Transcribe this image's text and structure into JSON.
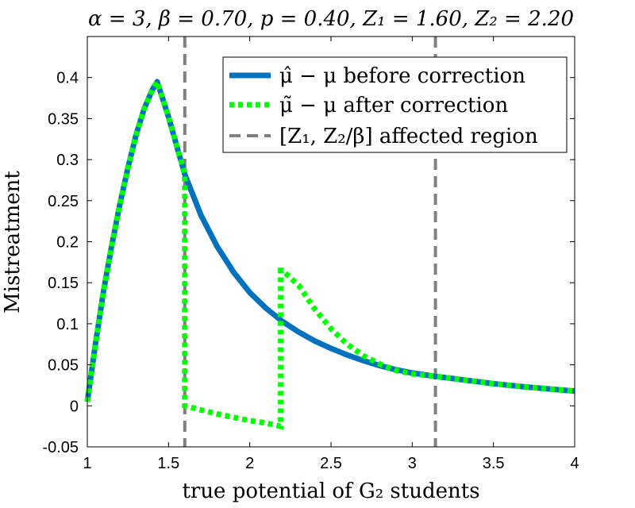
{
  "chart_data": {
    "type": "line",
    "title": "α = 3, β = 0.70, p = 0.40, Z₁ = 1.60, Z₂ = 2.20",
    "xlabel": "true potential of G₂ students",
    "ylabel": "Mistreatment",
    "xlim": [
      1,
      4
    ],
    "ylim": [
      -0.05,
      0.45
    ],
    "x_ticks": [
      1,
      1.5,
      2,
      2.5,
      3,
      3.5,
      4
    ],
    "x_tick_labels": [
      "1",
      "1.5",
      "2",
      "2.5",
      "3",
      "3.5",
      "4"
    ],
    "y_ticks": [
      -0.05,
      0,
      0.05,
      0.1,
      0.15,
      0.2,
      0.25,
      0.3,
      0.35,
      0.4
    ],
    "y_tick_labels": [
      "-0.05",
      "0",
      "0.05",
      "0.1",
      "0.15",
      "0.2",
      "0.25",
      "0.3",
      "0.35",
      "0.4"
    ],
    "legend_position": "top-right",
    "series": [
      {
        "name": "μ̂ − μ before correction",
        "style": "solid",
        "color": "#0072BD",
        "x": [
          1.0,
          1.05,
          1.1,
          1.15,
          1.2,
          1.25,
          1.3,
          1.35,
          1.4,
          1.43,
          1.5,
          1.6,
          1.7,
          1.8,
          1.9,
          2.0,
          2.1,
          2.2,
          2.3,
          2.4,
          2.5,
          2.6,
          2.7,
          2.8,
          2.9,
          3.0,
          3.14,
          3.3,
          3.5,
          3.7,
          4.0
        ],
        "y": [
          0.005,
          0.075,
          0.14,
          0.195,
          0.245,
          0.29,
          0.33,
          0.362,
          0.385,
          0.395,
          0.352,
          0.282,
          0.232,
          0.194,
          0.163,
          0.138,
          0.119,
          0.103,
          0.09,
          0.079,
          0.07,
          0.062,
          0.055,
          0.049,
          0.044,
          0.04,
          0.036,
          0.032,
          0.027,
          0.023,
          0.018
        ]
      },
      {
        "name": "μ̃ − μ after correction",
        "style": "dotted",
        "color": "#00FF00",
        "x": [
          1.0,
          1.05,
          1.1,
          1.15,
          1.2,
          1.25,
          1.3,
          1.35,
          1.4,
          1.43,
          1.5,
          1.6,
          1.6,
          1.7,
          1.8,
          1.9,
          2.0,
          2.1,
          2.19,
          2.19,
          2.2,
          2.3,
          2.4,
          2.5,
          2.6,
          2.7,
          2.8,
          2.9,
          3.0,
          3.14,
          3.3,
          3.5,
          3.7,
          4.0
        ],
        "y": [
          0.005,
          0.075,
          0.14,
          0.195,
          0.245,
          0.29,
          0.33,
          0.362,
          0.385,
          0.395,
          0.352,
          0.282,
          0.0,
          -0.005,
          -0.01,
          -0.014,
          -0.018,
          -0.021,
          -0.025,
          0.165,
          0.165,
          0.147,
          0.118,
          0.094,
          0.075,
          0.061,
          0.051,
          0.043,
          0.039,
          0.036,
          0.032,
          0.027,
          0.023,
          0.018
        ]
      },
      {
        "name": "[Z₁, Z₂/β] affected region",
        "style": "dashed",
        "color": "#808080",
        "vlines": [
          1.6,
          3.1429
        ]
      }
    ]
  }
}
